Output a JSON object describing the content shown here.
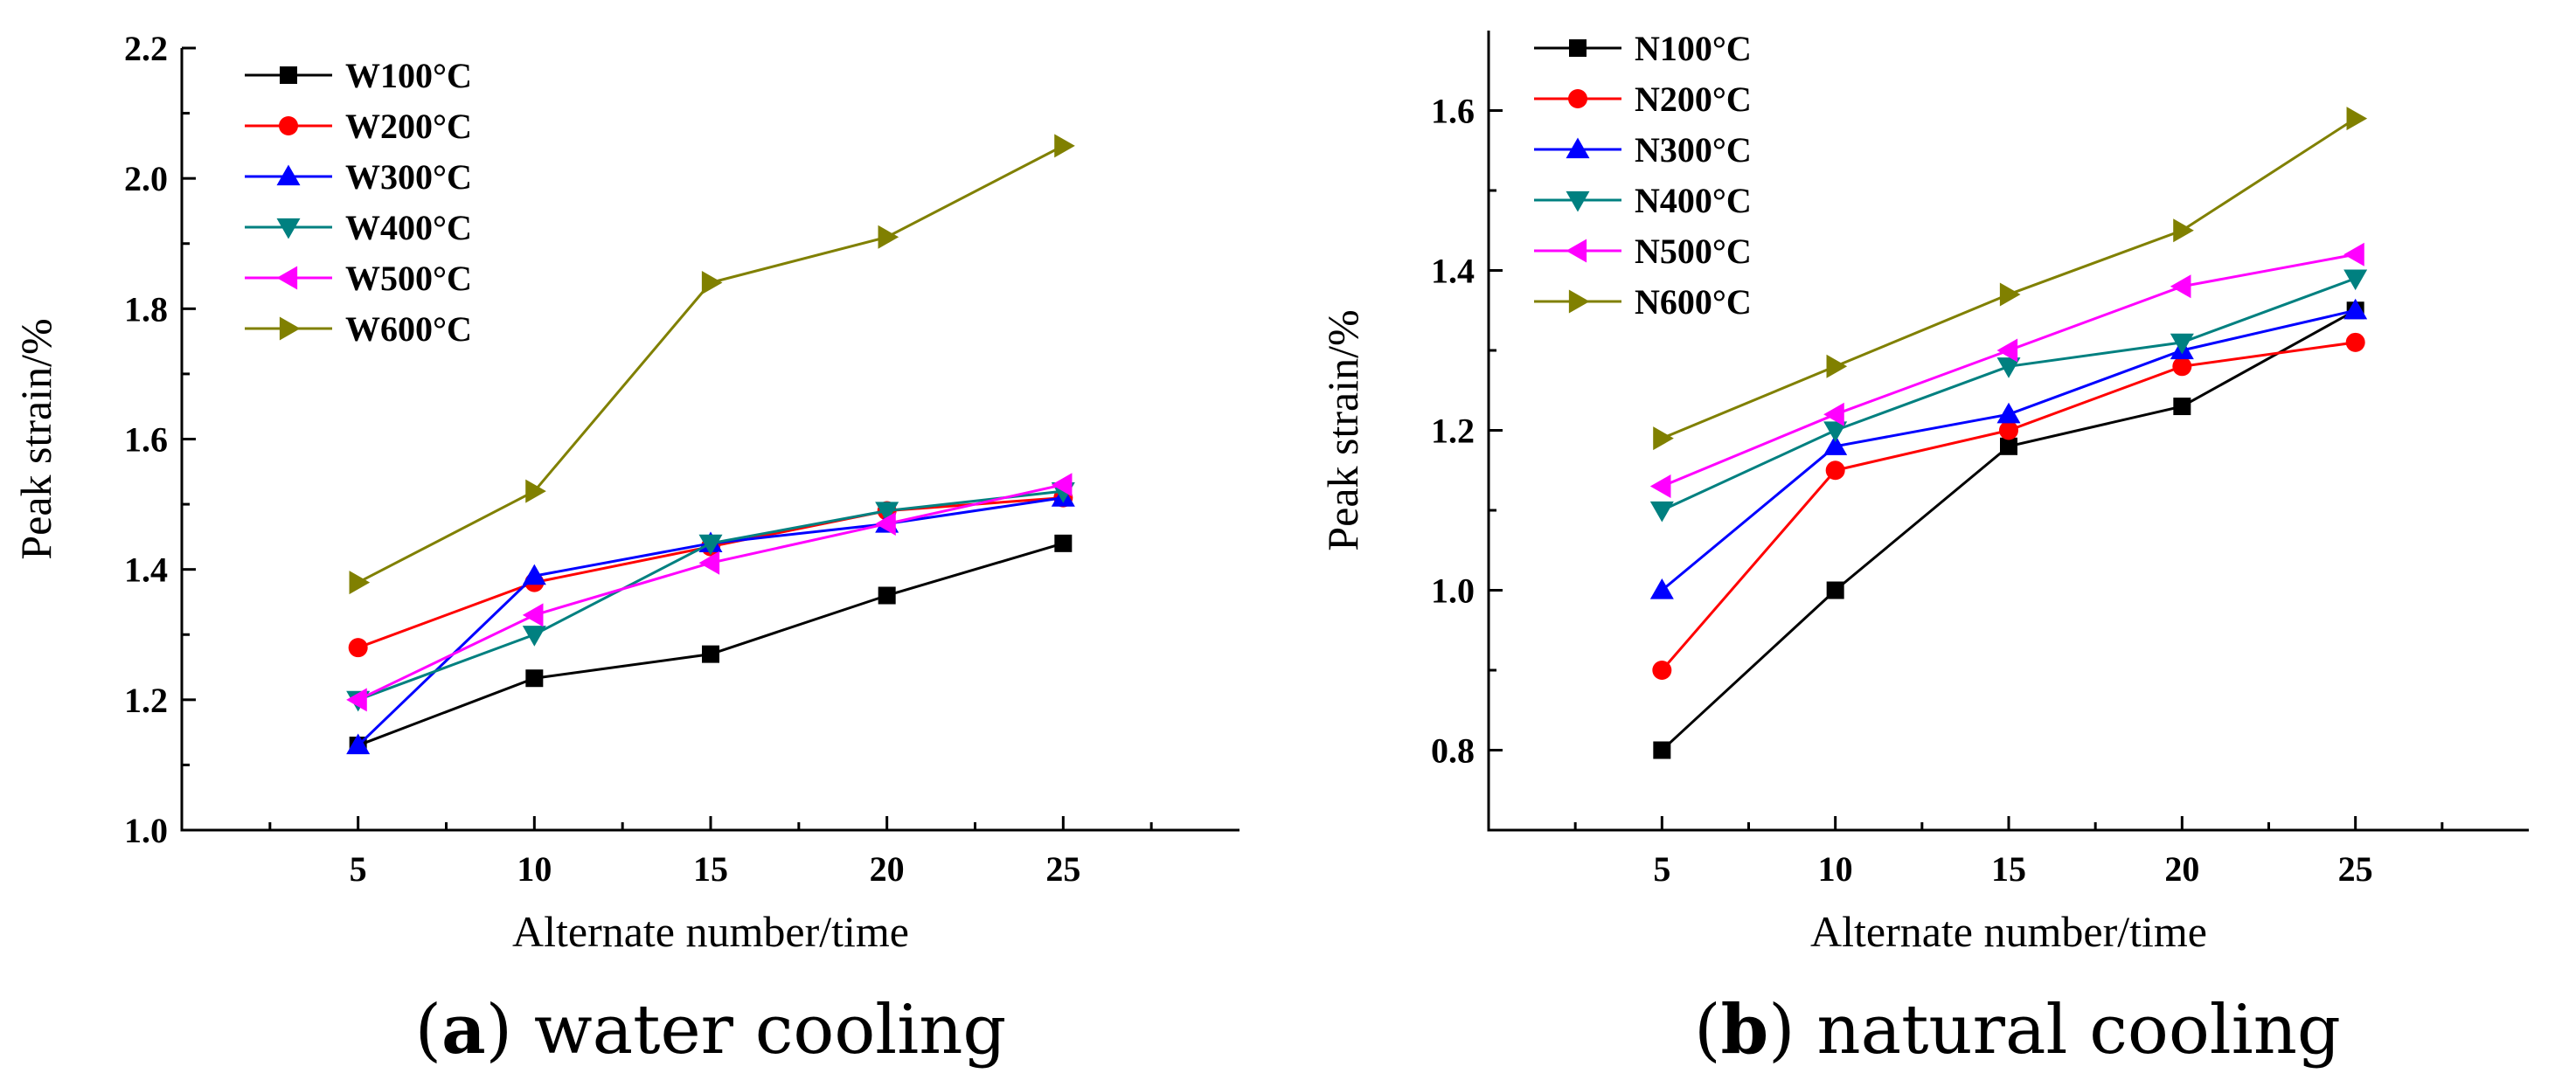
{
  "chart_data": [
    {
      "type": "line",
      "caption_letter": "a",
      "caption_text": "water cooling",
      "xlabel": "Alternate number/time",
      "ylabel": "Peak strain/%",
      "x": [
        5,
        10,
        15,
        20,
        25
      ],
      "xlim": [
        0,
        30
      ],
      "ylim": [
        1.0,
        2.2
      ],
      "xticks": [
        "5",
        "10",
        "15",
        "20",
        "25"
      ],
      "yticks": [
        "1.0",
        "1.2",
        "1.4",
        "1.6",
        "1.8",
        "2.0",
        "2.2"
      ],
      "legend_position": "top-left",
      "series": [
        {
          "name": "W100°C",
          "color": "#000000",
          "marker": "square",
          "values": [
            1.13,
            1.233,
            1.27,
            1.36,
            1.44
          ]
        },
        {
          "name": "W200°C",
          "color": "#ff0000",
          "marker": "circle",
          "values": [
            1.28,
            1.38,
            1.435,
            1.49,
            1.51
          ]
        },
        {
          "name": "W300°C",
          "color": "#0000ff",
          "marker": "triangle-up",
          "values": [
            1.13,
            1.39,
            1.44,
            1.47,
            1.51
          ]
        },
        {
          "name": "W400°C",
          "color": "#008080",
          "marker": "triangle-down",
          "values": [
            1.2,
            1.3,
            1.44,
            1.49,
            1.52
          ]
        },
        {
          "name": "W500°C",
          "color": "#ff00ff",
          "marker": "triangle-left",
          "values": [
            1.2,
            1.33,
            1.41,
            1.47,
            1.53
          ]
        },
        {
          "name": "W600°C",
          "color": "#808000",
          "marker": "triangle-right",
          "values": [
            1.38,
            1.52,
            1.84,
            1.91,
            2.05
          ]
        }
      ]
    },
    {
      "type": "line",
      "caption_letter": "b",
      "caption_text": "natural cooling",
      "xlabel": "Alternate number/time",
      "ylabel": "Peak strain/%",
      "x": [
        5,
        10,
        15,
        20,
        25
      ],
      "xlim": [
        0,
        30
      ],
      "ylim": [
        0.7,
        1.7
      ],
      "xticks": [
        "5",
        "10",
        "15",
        "20",
        "25"
      ],
      "yticks": [
        "0.8",
        "1.0",
        "1.2",
        "1.4",
        "1.6"
      ],
      "legend_position": "top-left",
      "series": [
        {
          "name": "N100°C",
          "color": "#000000",
          "marker": "square",
          "values": [
            0.8,
            1.0,
            1.18,
            1.23,
            1.35
          ]
        },
        {
          "name": "N200°C",
          "color": "#ff0000",
          "marker": "circle",
          "values": [
            0.9,
            1.15,
            1.2,
            1.28,
            1.31
          ]
        },
        {
          "name": "N300°C",
          "color": "#0000ff",
          "marker": "triangle-up",
          "values": [
            1.0,
            1.18,
            1.22,
            1.3,
            1.35
          ]
        },
        {
          "name": "N400°C",
          "color": "#008080",
          "marker": "triangle-down",
          "values": [
            1.1,
            1.2,
            1.28,
            1.31,
            1.39
          ]
        },
        {
          "name": "N500°C",
          "color": "#ff00ff",
          "marker": "triangle-left",
          "values": [
            1.13,
            1.22,
            1.3,
            1.38,
            1.42
          ]
        },
        {
          "name": "N600°C",
          "color": "#808000",
          "marker": "triangle-right",
          "values": [
            1.19,
            1.28,
            1.37,
            1.45,
            1.59
          ]
        }
      ]
    }
  ]
}
